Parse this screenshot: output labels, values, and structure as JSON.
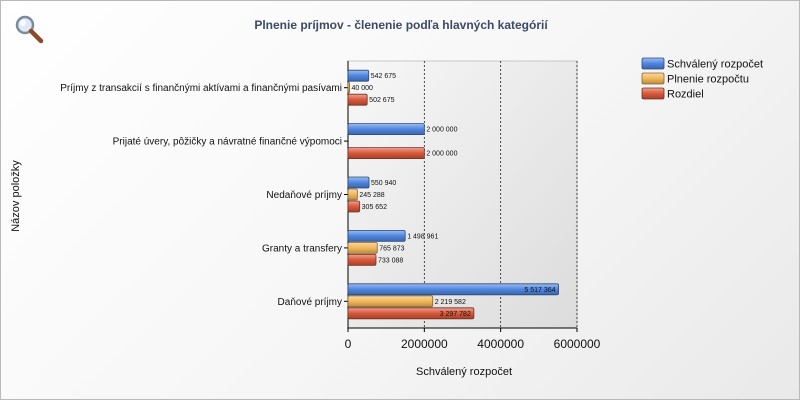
{
  "chart_data": {
    "type": "bar",
    "orientation": "horizontal",
    "title": "Plnenie príjmov - členenie podľa hlavných kategórií",
    "xlabel": "Schválený rozpočet",
    "ylabel": "Názov položky",
    "xlim": [
      0,
      6000000
    ],
    "x_ticks": [
      {
        "value": 0,
        "label": "0"
      },
      {
        "value": 2000000,
        "label": "2000000"
      },
      {
        "value": 4000000,
        "label": "4000000"
      },
      {
        "value": 6000000,
        "label": "6000000"
      }
    ],
    "grid": true,
    "legend_position": "top-right",
    "categories": [
      "Príjmy z transakcií s finančnými aktívami a finančnými pasívami",
      "Prijaté úvery, pôžičky a návratné finančné výpomoci",
      "Nedaňové príjmy",
      "Granty a transfery",
      "Daňové príjmy"
    ],
    "series": [
      {
        "name": "Schválený rozpočet",
        "color": "#4f86e0",
        "values": [
          542675,
          2000000,
          550940,
          1498961,
          5517364
        ],
        "labels": [
          "542 675",
          "2 000 000",
          "550 940",
          "1 498 961",
          "5 517 364"
        ]
      },
      {
        "name": "Plnenie rozpočtu",
        "color": "#f2b85a",
        "values": [
          40000,
          0,
          245288,
          765873,
          2219582
        ],
        "labels": [
          "40 000",
          "",
          "245 288",
          "765 873",
          "2 219 582"
        ]
      },
      {
        "name": "Rozdiel",
        "color": "#d9583a",
        "values": [
          502675,
          2000000,
          305652,
          733088,
          3297782
        ],
        "labels": [
          "502 675",
          "2 000 000",
          "305 652",
          "733 088",
          "3 297 782"
        ]
      }
    ]
  }
}
